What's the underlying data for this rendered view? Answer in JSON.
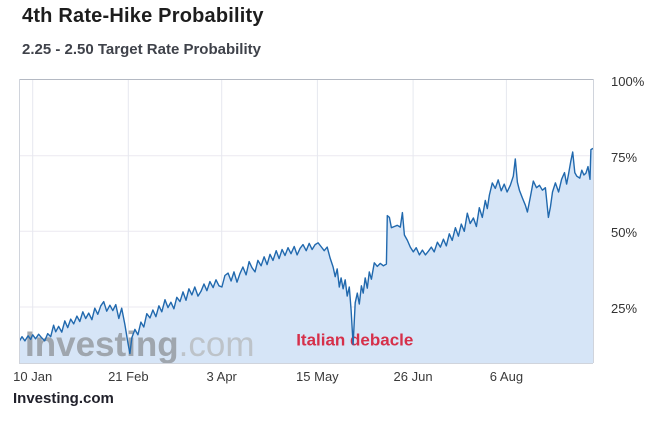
{
  "header": {
    "title": "4th Rate-Hike Probability",
    "subtitle": "2.25 - 2.50 Target Rate Probability"
  },
  "watermark": {
    "main": "Investing",
    "suffix": ".com"
  },
  "footer": {
    "brand": "Investing.com"
  },
  "colors": {
    "line": "#2169ae",
    "fill": "#d6e5f7",
    "grid_vertical": "#e6e8ef",
    "grid_horizontal": "#ebe9f0",
    "border_top": "#b4b9c3",
    "border": "#d0d4dc",
    "annotation": "#d6304a",
    "watermark_main": "#969ca2",
    "watermark_suffix": "#b9bec2"
  },
  "chart_data": {
    "type": "area",
    "title": "2.25 - 2.50 Target Rate Probability",
    "legend": "none",
    "grid": true,
    "x_axis": {
      "unit": "day-of-year-2018",
      "min": 4,
      "max": 256,
      "ticks": [
        {
          "day": 10,
          "label": "10 Jan"
        },
        {
          "day": 52,
          "label": "21 Feb"
        },
        {
          "day": 93,
          "label": "3 Apr"
        },
        {
          "day": 135,
          "label": "15 May"
        },
        {
          "day": 177,
          "label": "26 Jun"
        },
        {
          "day": 218,
          "label": "6 Aug"
        }
      ]
    },
    "y_axis": {
      "unit": "percent",
      "min": 6.5,
      "max": 100.3,
      "gridlines": [
        25,
        50,
        75
      ],
      "ticks": [
        {
          "value": 100,
          "label": "100%"
        },
        {
          "value": 75,
          "label": "75%"
        },
        {
          "value": 50,
          "label": "50%"
        },
        {
          "value": 25,
          "label": "25%"
        }
      ]
    },
    "annotation": {
      "text": "Italian debacle",
      "day": 125.7,
      "pct": 14.3
    },
    "series": [
      {
        "name": "4th rate-hike probability",
        "points": [
          [
            4,
            13.5
          ],
          [
            5.3,
            15.2
          ],
          [
            6.6,
            13.8
          ],
          [
            8,
            15.5
          ],
          [
            9.1,
            14.3
          ],
          [
            10,
            15.8
          ],
          [
            11.3,
            14.5
          ],
          [
            12.6,
            16
          ],
          [
            14,
            14.8
          ],
          [
            15.3,
            13.8
          ],
          [
            16.6,
            16.2
          ],
          [
            17.9,
            15.2
          ],
          [
            19.2,
            19
          ],
          [
            20.1,
            16.8
          ],
          [
            21.4,
            18.6
          ],
          [
            22.8,
            16.7
          ],
          [
            24.1,
            20.4
          ],
          [
            25.4,
            18.2
          ],
          [
            26.7,
            21
          ],
          [
            28,
            19.4
          ],
          [
            29.4,
            22
          ],
          [
            30.7,
            20.2
          ],
          [
            32,
            23.4
          ],
          [
            33.3,
            21.2
          ],
          [
            34.6,
            23
          ],
          [
            36,
            20.8
          ],
          [
            37.3,
            24.6
          ],
          [
            38.6,
            22.6
          ],
          [
            39.9,
            25.4
          ],
          [
            41.2,
            26.8
          ],
          [
            42.5,
            23.6
          ],
          [
            43.9,
            25.6
          ],
          [
            45.2,
            23.8
          ],
          [
            46.5,
            25.8
          ],
          [
            47.8,
            21.2
          ],
          [
            49.1,
            24.6
          ],
          [
            50.5,
            19.2
          ],
          [
            51.8,
            13.2
          ],
          [
            52.7,
            9.6
          ],
          [
            53.5,
            14.8
          ],
          [
            54.9,
            17.6
          ],
          [
            56.2,
            15.8
          ],
          [
            57.5,
            20
          ],
          [
            58.8,
            18.4
          ],
          [
            60.1,
            22.8
          ],
          [
            61.5,
            21.4
          ],
          [
            62.8,
            24
          ],
          [
            64.1,
            21.8
          ],
          [
            65.4,
            25.4
          ],
          [
            66.7,
            23.4
          ],
          [
            68.1,
            27.4
          ],
          [
            69.4,
            24.8
          ],
          [
            70.7,
            26.6
          ],
          [
            72,
            24.4
          ],
          [
            73.3,
            28.2
          ],
          [
            74.7,
            26.8
          ],
          [
            76,
            30
          ],
          [
            77.3,
            27.2
          ],
          [
            78.6,
            31
          ],
          [
            79.9,
            29
          ],
          [
            81.2,
            31.6
          ],
          [
            82.6,
            28.6
          ],
          [
            83.9,
            30.2
          ],
          [
            85.2,
            32.6
          ],
          [
            86.5,
            30.4
          ],
          [
            87.8,
            33.4
          ],
          [
            89.2,
            31.4
          ],
          [
            90.5,
            34
          ],
          [
            91.8,
            32
          ],
          [
            93.1,
            31.6
          ],
          [
            94.4,
            35.4
          ],
          [
            95.8,
            36.2
          ],
          [
            97.1,
            33.6
          ],
          [
            98.4,
            36.6
          ],
          [
            99.7,
            33.2
          ],
          [
            101,
            36
          ],
          [
            102.3,
            38.2
          ],
          [
            103.7,
            35.6
          ],
          [
            105,
            40
          ],
          [
            106.3,
            38
          ],
          [
            107.6,
            36.6
          ],
          [
            108.9,
            40.4
          ],
          [
            110.3,
            38.6
          ],
          [
            111.6,
            41.6
          ],
          [
            112.9,
            39
          ],
          [
            114.2,
            42.4
          ],
          [
            115.5,
            40.4
          ],
          [
            116.9,
            43.6
          ],
          [
            118.2,
            41
          ],
          [
            119.5,
            44
          ],
          [
            120.8,
            42
          ],
          [
            122.1,
            44.6
          ],
          [
            123.4,
            42.6
          ],
          [
            124.8,
            45
          ],
          [
            126.1,
            42.2
          ],
          [
            127.4,
            44.4
          ],
          [
            128.7,
            45.6
          ],
          [
            130.1,
            43.6
          ],
          [
            131.4,
            46
          ],
          [
            132.7,
            44
          ],
          [
            134,
            45.6
          ],
          [
            135.3,
            46.2
          ],
          [
            136.6,
            45
          ],
          [
            138,
            43.6
          ],
          [
            139.3,
            44.8
          ],
          [
            140.6,
            41.2
          ],
          [
            141.9,
            38.2
          ],
          [
            142.8,
            35
          ],
          [
            143.7,
            37.6
          ],
          [
            144.6,
            31.6
          ],
          [
            145.4,
            34.6
          ],
          [
            146.3,
            31
          ],
          [
            147.2,
            34
          ],
          [
            148.1,
            28.6
          ],
          [
            149,
            31.6
          ],
          [
            149.8,
            24
          ],
          [
            150.7,
            12.6
          ],
          [
            151.6,
            26.4
          ],
          [
            152.5,
            29.6
          ],
          [
            153.4,
            26
          ],
          [
            154.3,
            32
          ],
          [
            155.1,
            29.6
          ],
          [
            156,
            34.6
          ],
          [
            156.9,
            31.2
          ],
          [
            157.8,
            36.6
          ],
          [
            158.7,
            34.2
          ],
          [
            160,
            39.6
          ],
          [
            161.3,
            38.4
          ],
          [
            162.6,
            39.4
          ],
          [
            164,
            38.6
          ],
          [
            165.3,
            39.2
          ],
          [
            165.7,
            55.2
          ],
          [
            166.6,
            54.6
          ],
          [
            167.5,
            51.2
          ],
          [
            168.8,
            51.6
          ],
          [
            170.1,
            52
          ],
          [
            171.4,
            51.4
          ],
          [
            172.3,
            56.2
          ],
          [
            173.2,
            48.8
          ],
          [
            174.5,
            47
          ],
          [
            175.8,
            44.8
          ],
          [
            177.1,
            43.2
          ],
          [
            178.4,
            44.6
          ],
          [
            179.8,
            42.2
          ],
          [
            181.1,
            43.8
          ],
          [
            182.4,
            42.2
          ],
          [
            183.7,
            43.4
          ],
          [
            185,
            44.8
          ],
          [
            186.3,
            43.2
          ],
          [
            187.7,
            46.4
          ],
          [
            189,
            44.8
          ],
          [
            190.3,
            47.4
          ],
          [
            191.6,
            45.2
          ],
          [
            192.9,
            49.2
          ],
          [
            194.2,
            47
          ],
          [
            195.6,
            51.2
          ],
          [
            196.9,
            48.4
          ],
          [
            198.2,
            52.4
          ],
          [
            199.5,
            50
          ],
          [
            200.8,
            56
          ],
          [
            202.1,
            52.6
          ],
          [
            203.5,
            54.4
          ],
          [
            204.8,
            51.6
          ],
          [
            206.1,
            57.8
          ],
          [
            207.4,
            54.6
          ],
          [
            208.7,
            60.2
          ],
          [
            209.6,
            57.5
          ],
          [
            210.5,
            62
          ],
          [
            211.8,
            66
          ],
          [
            213.1,
            64.2
          ],
          [
            214.4,
            67
          ],
          [
            215.7,
            63.4
          ],
          [
            217,
            65.6
          ],
          [
            218.3,
            63
          ],
          [
            219.7,
            65.2
          ],
          [
            221,
            68.2
          ],
          [
            221.9,
            73.9
          ],
          [
            222.8,
            66.2
          ],
          [
            223.7,
            63.6
          ],
          [
            225,
            61
          ],
          [
            226.3,
            58.6
          ],
          [
            227.2,
            56.4
          ],
          [
            228.5,
            61.4
          ],
          [
            229.8,
            66.6
          ],
          [
            231.2,
            64.4
          ],
          [
            232.5,
            65.2
          ],
          [
            233.8,
            63.6
          ],
          [
            235.1,
            64.4
          ],
          [
            236.4,
            54.6
          ],
          [
            237.3,
            58
          ],
          [
            238.2,
            63
          ],
          [
            239.5,
            66
          ],
          [
            240.9,
            63
          ],
          [
            242.2,
            67.2
          ],
          [
            243.5,
            69.4
          ],
          [
            244.4,
            65.6
          ],
          [
            245.3,
            69
          ],
          [
            246.2,
            73
          ],
          [
            247.1,
            76.2
          ],
          [
            248,
            69.4
          ],
          [
            248.9,
            68.2
          ],
          [
            250.2,
            67.6
          ],
          [
            251.1,
            70.2
          ],
          [
            252,
            68.6
          ],
          [
            252.9,
            69.2
          ],
          [
            253.8,
            71.4
          ],
          [
            254.7,
            67.2
          ],
          [
            255.1,
            77
          ],
          [
            256,
            77.4
          ]
        ]
      }
    ]
  }
}
